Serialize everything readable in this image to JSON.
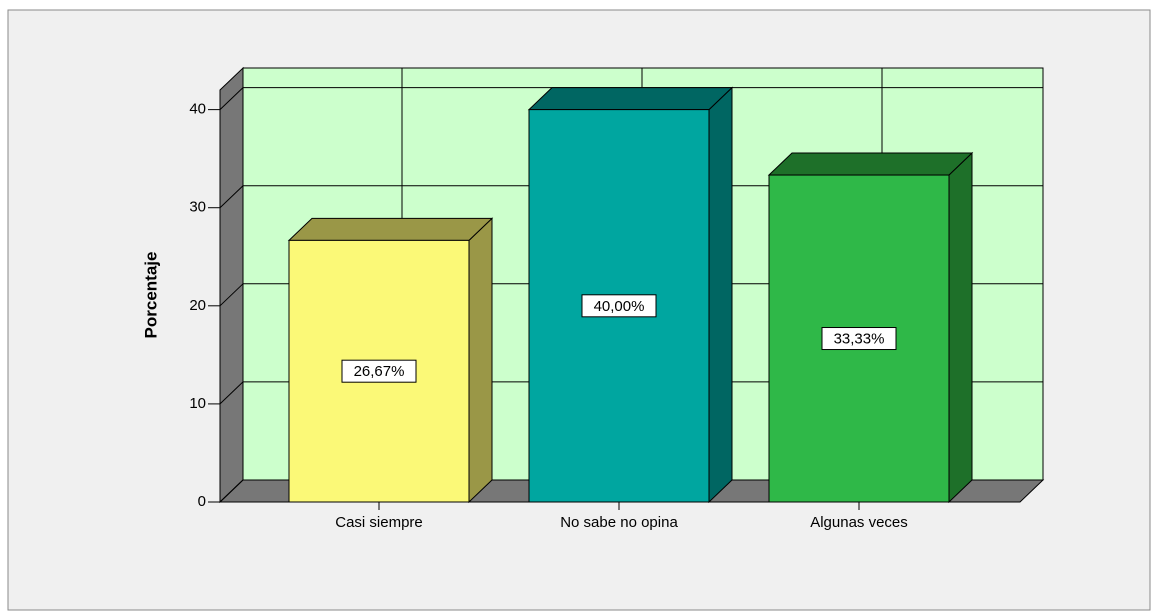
{
  "chart_data": {
    "type": "bar3d",
    "y_label": "Porcentaje",
    "categories": [
      "Casi siempre",
      "No sabe no opina",
      "Algunas veces"
    ],
    "values": [
      26.67,
      40,
      33.33
    ],
    "value_labels": [
      "26,67%",
      "40,00%",
      "33,33%"
    ],
    "colors": [
      "#fbf977",
      "#00a6a0",
      "#2fb848"
    ],
    "side_colors": [
      "#9a9747",
      "#006662",
      "#1e7029"
    ],
    "ylim": [
      0,
      42
    ],
    "yticks": [
      0,
      10,
      20,
      30,
      40
    ],
    "grid": true,
    "wall_color": "#ccffcc"
  }
}
